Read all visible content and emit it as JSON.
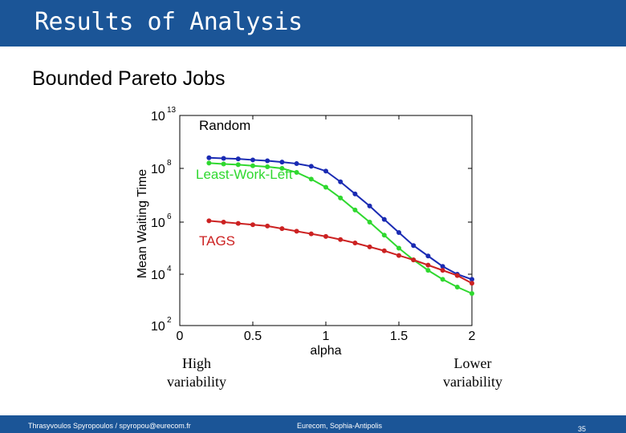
{
  "slide": {
    "title": "Results of Analysis",
    "subtitle": "Bounded Pareto Jobs",
    "note_left_line1": "High",
    "note_left_line2": "variability",
    "note_right_line1": "Lower",
    "note_right_line2": "variability",
    "footer_left": "Thrasyvoulos Spyropoulos / spyropou@eurecom.fr",
    "footer_center": "Eurecom, Sophia-Antipolis",
    "page_number": "35"
  },
  "colors": {
    "header": "#1b5597",
    "random": "#1a2bb3",
    "least_work_left": "#2fd82f",
    "tags": "#cc2222"
  },
  "chart_data": {
    "type": "line",
    "title": "",
    "xlabel": "alpha",
    "ylabel": "Mean Waiting Time",
    "xlim": [
      0,
      2
    ],
    "ylim_log10": [
      2,
      13
    ],
    "y_scale": "log",
    "grid": false,
    "x_ticks": [
      "0",
      "0.5",
      "1",
      "1.5",
      "2"
    ],
    "y_ticks": [
      {
        "base": "10",
        "exp": "2",
        "log": 2
      },
      {
        "base": "10",
        "exp": "4",
        "log": 4
      },
      {
        "base": "10",
        "exp": "6",
        "log": 6
      },
      {
        "base": "10",
        "exp": "8",
        "log": 8
      },
      {
        "base": "10",
        "exp": "13",
        "log": 13
      }
    ],
    "x": [
      0.2,
      0.3,
      0.4,
      0.5,
      0.6,
      0.7,
      0.8,
      0.9,
      1.0,
      1.1,
      1.2,
      1.3,
      1.4,
      1.5,
      1.6,
      1.7,
      1.8,
      1.9,
      2.0
    ],
    "series": [
      {
        "name": "Random",
        "log10_values": [
          9.0,
          8.95,
          8.9,
          8.8,
          8.72,
          8.6,
          8.45,
          8.2,
          7.9,
          7.5,
          7.05,
          6.6,
          6.1,
          5.6,
          5.1,
          4.7,
          4.3,
          4.0,
          3.8
        ]
      },
      {
        "name": "Least-Work-Left",
        "log10_values": [
          8.5,
          8.42,
          8.35,
          8.25,
          8.15,
          8.0,
          7.85,
          7.6,
          7.3,
          6.9,
          6.45,
          6.0,
          5.5,
          5.0,
          4.55,
          4.15,
          3.8,
          3.5,
          3.25
        ]
      },
      {
        "name": "TAGS",
        "log10_values": [
          6.05,
          6.0,
          5.95,
          5.9,
          5.85,
          5.75,
          5.65,
          5.55,
          5.45,
          5.33,
          5.2,
          5.05,
          4.9,
          4.72,
          4.55,
          4.35,
          4.15,
          3.95,
          3.65
        ]
      }
    ]
  }
}
